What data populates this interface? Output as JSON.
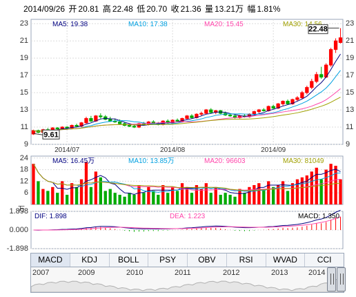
{
  "header": {
    "date": "2014/09/26",
    "open_label": "开",
    "open": "20.81",
    "high_label": "高",
    "high": "22.48",
    "low_label": "低",
    "low": "20.70",
    "close_label": "收",
    "close": "21.36",
    "volume_label": "量",
    "volume": "13.21万",
    "change_label": "幅",
    "change": "1.81%"
  },
  "price_legend": {
    "ma5": "MA5: 19.38",
    "ma10": "MA10: 17.38",
    "ma20": "MA20: 15.45",
    "ma30": "MA30: 14.56"
  },
  "volume_legend": {
    "ma5": "MA5: 16.45万",
    "ma10": "MA10: 13.85万",
    "ma20": "MA20: 96603",
    "ma30": "MA30: 81049"
  },
  "macd_legend": {
    "dif": "DIF: 1.898",
    "dea": "DEA: 1.223",
    "macd": "MACD: 1.350"
  },
  "high_marker": "22.48",
  "low_marker": "9.61",
  "volume_unit": "万",
  "colors": {
    "up": "#ff0000",
    "down": "#00aa00",
    "ma5": "#000080",
    "ma10": "#00a0e0",
    "ma20": "#ff44aa",
    "ma30": "#a0a000",
    "dif": "#000080",
    "dea": "#ff44aa"
  },
  "tabs": [
    "MACD",
    "KDJ",
    "BOLL",
    "PSY",
    "OBV",
    "RSI",
    "WVAD",
    "CCI"
  ],
  "active_tab": "MACD",
  "navigator_years": [
    "2007",
    "2009",
    "2010",
    "2011",
    "2012",
    "2013",
    "2014"
  ],
  "chart_data": {
    "type": "candlestick",
    "price_axis": {
      "ticks": [
        9,
        11,
        13,
        15,
        17,
        19,
        21,
        23
      ],
      "range": [
        9,
        23.5
      ]
    },
    "x_labels": [
      {
        "label": "2014/07",
        "index": 7
      },
      {
        "label": "2014/08",
        "index": 29
      },
      {
        "label": "2014/09",
        "index": 50
      }
    ],
    "candles": [
      [
        10.2,
        10.7,
        10.1,
        10.6
      ],
      [
        10.6,
        10.7,
        10.3,
        10.4
      ],
      [
        10.4,
        10.8,
        10.3,
        10.7
      ],
      [
        10.7,
        10.9,
        10.5,
        10.6
      ],
      [
        10.6,
        11.0,
        10.5,
        10.9
      ],
      [
        10.9,
        11.0,
        10.7,
        10.8
      ],
      [
        10.8,
        11.1,
        10.7,
        11.0
      ],
      [
        11.0,
        11.1,
        10.8,
        10.9
      ],
      [
        10.9,
        11.3,
        10.8,
        11.2
      ],
      [
        11.2,
        11.4,
        11.0,
        11.1
      ],
      [
        11.1,
        11.6,
        11.0,
        11.5
      ],
      [
        11.5,
        12.2,
        11.4,
        12.0
      ],
      [
        12.0,
        12.3,
        11.6,
        11.7
      ],
      [
        11.7,
        12.4,
        11.6,
        12.3
      ],
      [
        12.3,
        12.6,
        12.0,
        12.2
      ],
      [
        12.2,
        12.4,
        11.8,
        11.9
      ],
      [
        11.9,
        12.2,
        11.6,
        11.7
      ],
      [
        11.7,
        12.0,
        11.5,
        11.6
      ],
      [
        11.6,
        11.9,
        11.3,
        11.4
      ],
      [
        11.4,
        11.6,
        11.1,
        11.2
      ],
      [
        11.2,
        11.4,
        11.0,
        11.1
      ],
      [
        11.1,
        11.3,
        10.9,
        11.0
      ],
      [
        11.0,
        11.5,
        10.9,
        11.4
      ],
      [
        11.4,
        11.6,
        11.2,
        11.3
      ],
      [
        11.3,
        11.7,
        11.2,
        11.6
      ],
      [
        11.6,
        11.8,
        11.3,
        11.4
      ],
      [
        11.4,
        11.6,
        11.2,
        11.3
      ],
      [
        11.3,
        11.8,
        11.2,
        11.7
      ],
      [
        11.7,
        11.9,
        11.4,
        11.5
      ],
      [
        11.5,
        11.9,
        11.4,
        11.8
      ],
      [
        11.8,
        12.0,
        11.6,
        11.7
      ],
      [
        11.7,
        12.1,
        11.6,
        12.0
      ],
      [
        12.0,
        12.4,
        11.9,
        12.3
      ],
      [
        12.3,
        12.5,
        12.0,
        12.1
      ],
      [
        12.1,
        12.6,
        12.0,
        12.5
      ],
      [
        12.5,
        12.8,
        12.3,
        12.6
      ],
      [
        12.6,
        13.1,
        12.5,
        13.0
      ],
      [
        13.0,
        13.2,
        12.6,
        12.7
      ],
      [
        12.7,
        13.0,
        12.5,
        12.9
      ],
      [
        12.9,
        13.0,
        12.5,
        12.6
      ],
      [
        12.6,
        12.8,
        12.3,
        12.4
      ],
      [
        12.4,
        12.6,
        12.2,
        12.3
      ],
      [
        12.3,
        12.5,
        12.0,
        12.1
      ],
      [
        12.1,
        12.4,
        12.0,
        12.3
      ],
      [
        12.3,
        12.5,
        12.1,
        12.2
      ],
      [
        12.2,
        12.6,
        12.1,
        12.5
      ],
      [
        12.5,
        12.9,
        12.4,
        12.8
      ],
      [
        12.8,
        13.1,
        12.6,
        13.0
      ],
      [
        13.0,
        13.2,
        12.8,
        12.9
      ],
      [
        12.9,
        13.5,
        12.8,
        13.4
      ],
      [
        13.4,
        13.6,
        13.1,
        13.2
      ],
      [
        13.2,
        13.8,
        13.1,
        13.7
      ],
      [
        13.7,
        14.1,
        13.5,
        14.0
      ],
      [
        14.0,
        14.2,
        13.6,
        13.7
      ],
      [
        13.7,
        14.3,
        13.6,
        14.2
      ],
      [
        14.2,
        14.6,
        14.0,
        14.4
      ],
      [
        14.4,
        15.2,
        14.3,
        15.0
      ],
      [
        15.0,
        15.8,
        14.8,
        15.6
      ],
      [
        15.6,
        16.6,
        15.4,
        16.3
      ],
      [
        16.3,
        17.4,
        16.1,
        17.1
      ],
      [
        17.1,
        18.0,
        16.6,
        16.8
      ],
      [
        16.8,
        18.4,
        16.7,
        18.2
      ],
      [
        18.2,
        20.2,
        18.0,
        20.0
      ],
      [
        20.0,
        21.3,
        19.6,
        21.0
      ],
      [
        20.81,
        22.48,
        20.7,
        21.36
      ]
    ],
    "volume_axis": {
      "ticks": [
        6,
        12,
        18,
        24
      ],
      "range": [
        0,
        25
      ]
    },
    "volumes": [
      21,
      12,
      8,
      7,
      9,
      6,
      12,
      5,
      11,
      9,
      13,
      22,
      9,
      17,
      14,
      7,
      8,
      6,
      5,
      4,
      6,
      5,
      10,
      6,
      9,
      7,
      5,
      10,
      6,
      9,
      7,
      11,
      9,
      6,
      10,
      8,
      11,
      6,
      9,
      5,
      6,
      5,
      4,
      8,
      6,
      9,
      10,
      11,
      8,
      12,
      9,
      10,
      12,
      7,
      11,
      13,
      14,
      15,
      17,
      19,
      13,
      18,
      21,
      20,
      13
    ],
    "macd_axis": {
      "ticks": [
        1.898,
        0.0,
        -1.898
      ],
      "labels": [
        "1.898",
        "0.000",
        "-1.898"
      ],
      "range": [
        -1.898,
        1.898
      ]
    }
  }
}
